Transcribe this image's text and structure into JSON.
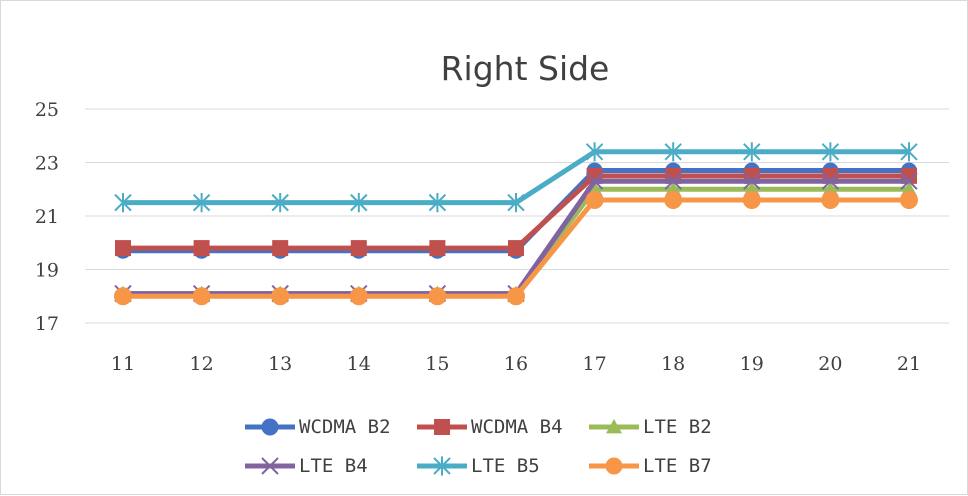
{
  "chart_data": {
    "type": "line",
    "title": "Right Side",
    "xlabel": "",
    "ylabel": "",
    "x": [
      11,
      12,
      13,
      14,
      15,
      16,
      17,
      18,
      19,
      20,
      21
    ],
    "ylim": [
      17,
      25
    ],
    "yticks": [
      17,
      19,
      21,
      23,
      25
    ],
    "grid": true,
    "legend_position": "bottom",
    "series": [
      {
        "name": "WCDMA B2",
        "color": "#4472C4",
        "marker": "circle",
        "values": [
          19.7,
          19.7,
          19.7,
          19.7,
          19.7,
          19.7,
          22.7,
          22.7,
          22.7,
          22.7,
          22.7
        ]
      },
      {
        "name": "WCDMA B4",
        "color": "#C0504D",
        "marker": "square",
        "values": [
          19.8,
          19.8,
          19.8,
          19.8,
          19.8,
          19.8,
          22.5,
          22.5,
          22.5,
          22.5,
          22.5
        ]
      },
      {
        "name": "LTE B2",
        "color": "#9BBB59",
        "marker": "triangle",
        "values": [
          18.1,
          18.1,
          18.1,
          18.1,
          18.1,
          18.1,
          22.0,
          22.0,
          22.0,
          22.0,
          22.0
        ]
      },
      {
        "name": "LTE B4",
        "color": "#8064A2",
        "marker": "x",
        "values": [
          18.1,
          18.1,
          18.1,
          18.1,
          18.1,
          18.1,
          22.3,
          22.3,
          22.3,
          22.3,
          22.3
        ]
      },
      {
        "name": "LTE B5",
        "color": "#4BACC6",
        "marker": "star",
        "values": [
          21.5,
          21.5,
          21.5,
          21.5,
          21.5,
          21.5,
          23.4,
          23.4,
          23.4,
          23.4,
          23.4
        ]
      },
      {
        "name": "LTE B7",
        "color": "#F79646",
        "marker": "circle",
        "values": [
          18.0,
          18.0,
          18.0,
          18.0,
          18.0,
          18.0,
          21.6,
          21.6,
          21.6,
          21.6,
          21.6
        ]
      }
    ]
  }
}
